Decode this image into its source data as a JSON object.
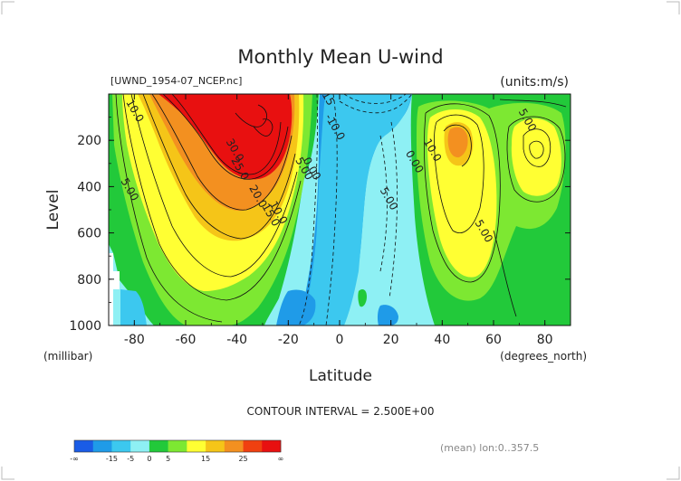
{
  "chart_data": {
    "type": "heatmap",
    "title": "Monthly Mean U-wind",
    "file_label": "[UWND_1954-07_NCEP.nc]",
    "units_label": "(units:m/s)",
    "xlabel": "Latitude",
    "x_units_label": "(degrees_north)",
    "ylabel": "Level",
    "y_units_label": "(millibar)",
    "xlim": [
      -90,
      90
    ],
    "ylim": [
      1000,
      0
    ],
    "x_ticks": [
      "-80",
      "-60",
      "-40",
      "-20",
      "0",
      "20",
      "40",
      "60",
      "80"
    ],
    "x_tick_values": [
      -80,
      -60,
      -40,
      -20,
      0,
      20,
      40,
      60,
      80
    ],
    "y_ticks": [
      "200",
      "400",
      "600",
      "800",
      "1000"
    ],
    "y_tick_values": [
      200,
      400,
      600,
      800,
      1000
    ],
    "contour_interval_text": "CONTOUR INTERVAL = 2.500E+00",
    "footer_text": "(mean) lon:0..357.5",
    "contour_labels": [
      {
        "text": "10.0",
        "lat": -81,
        "lev": 80
      },
      {
        "text": "5.00",
        "lat": -83,
        "lev": 420
      },
      {
        "text": "30.0",
        "lat": -42,
        "lev": 250
      },
      {
        "text": "25.0",
        "lat": -40,
        "lev": 330
      },
      {
        "text": "20.0",
        "lat": -33,
        "lev": 450
      },
      {
        "text": "15.0",
        "lat": -28,
        "lev": 530
      },
      {
        "text": "10.0",
        "lat": -25,
        "lev": 520
      },
      {
        "text": "5.00",
        "lat": -15,
        "lev": 330
      },
      {
        "text": "0.00",
        "lat": -12,
        "lev": 330
      },
      {
        "text": "-10.0",
        "lat": -3,
        "lev": 150
      },
      {
        "text": "-15",
        "lat": -6,
        "lev": 20
      },
      {
        "text": "5.00",
        "lat": 18,
        "lev": 460
      },
      {
        "text": "0.00",
        "lat": 28,
        "lev": 300
      },
      {
        "text": "10.0",
        "lat": 35,
        "lev": 250
      },
      {
        "text": "5.00",
        "lat": 55,
        "lev": 600
      },
      {
        "text": "5.00",
        "lat": 72,
        "lev": 120
      }
    ],
    "colorbar": {
      "levels": [
        "-∞",
        "-15",
        "-5",
        "0",
        "5",
        "15",
        "25",
        "∞"
      ],
      "colors": [
        "#1a5ce6",
        "#1f9be8",
        "#3cc8ef",
        "#8ef0f4",
        "#22c93a",
        "#7de832",
        "#ffff33",
        "#f5c518",
        "#f39020",
        "#f04010",
        "#e81010"
      ]
    }
  }
}
